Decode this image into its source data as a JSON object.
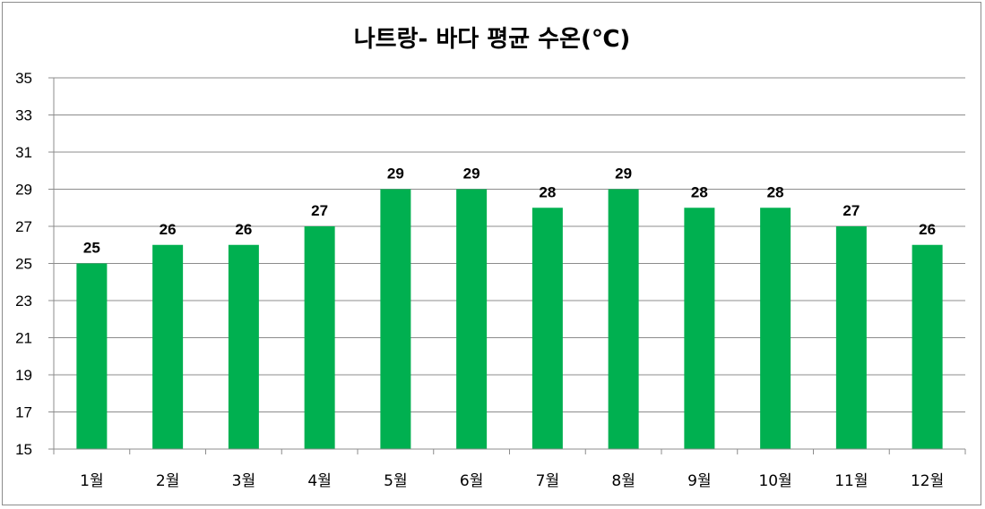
{
  "chart_data": {
    "type": "bar",
    "title": "나트랑- 바다  평균 수온(℃)",
    "categories": [
      "1월",
      "2월",
      "3월",
      "4월",
      "5월",
      "6월",
      "7월",
      "8월",
      "9월",
      "10월",
      "11월",
      "12월"
    ],
    "values": [
      25,
      26,
      26,
      27,
      29,
      29,
      28,
      29,
      28,
      28,
      27,
      26
    ],
    "ylim": [
      15,
      35
    ],
    "yticks": [
      15,
      17,
      19,
      21,
      23,
      25,
      27,
      29,
      31,
      33,
      35
    ],
    "grid": true,
    "bar_color": "#00b050",
    "xlabel": "",
    "ylabel": ""
  }
}
